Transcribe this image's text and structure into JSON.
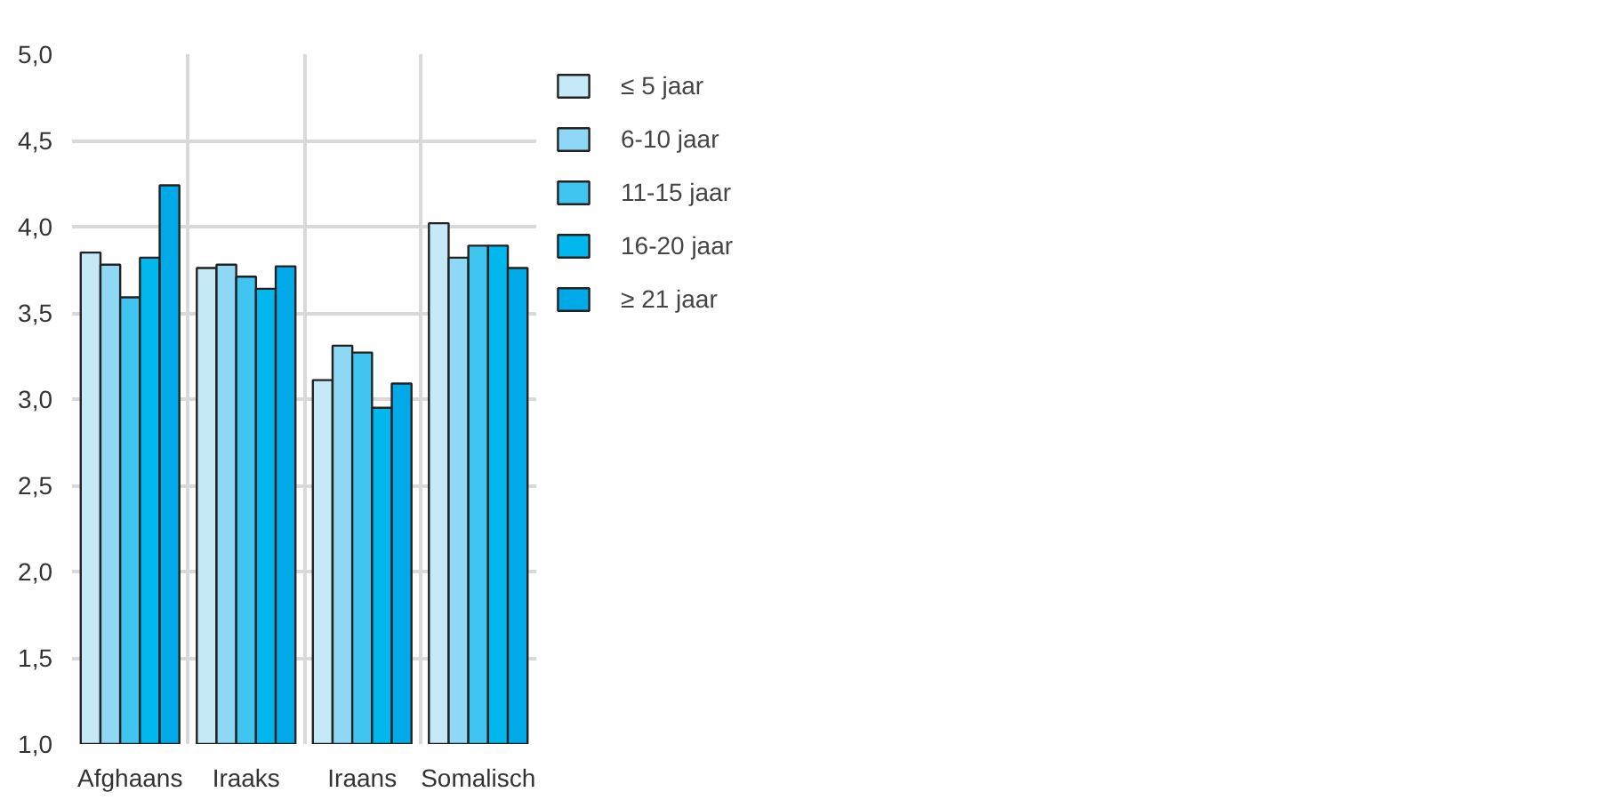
{
  "chart_data": {
    "type": "bar",
    "categories": [
      "Afghaans",
      "Iraaks",
      "Iraans",
      "Somalisch"
    ],
    "series": [
      {
        "name": "≤ 5 jaar",
        "color": "#c6e9f8",
        "values": [
          3.85,
          3.76,
          3.11,
          4.02
        ]
      },
      {
        "name": "6-10 jaar",
        "color": "#8fd8f5",
        "values": [
          3.78,
          3.78,
          3.31,
          3.82
        ]
      },
      {
        "name": "11-15 jaar",
        "color": "#40c4f0",
        "values": [
          3.59,
          3.71,
          3.27,
          3.89
        ]
      },
      {
        "name": "16-20 jaar",
        "color": "#00b8ee",
        "values": [
          3.82,
          3.64,
          2.95,
          3.89
        ]
      },
      {
        "name": "≥ 21 jaar",
        "color": "#00aae8",
        "values": [
          4.24,
          3.77,
          3.09,
          3.76
        ]
      }
    ],
    "ylim": [
      1.0,
      5.0
    ],
    "yticks": [
      {
        "value": 1.0,
        "label": "1,0"
      },
      {
        "value": 1.5,
        "label": "1,5"
      },
      {
        "value": 2.0,
        "label": "2,0"
      },
      {
        "value": 2.5,
        "label": "2,5"
      },
      {
        "value": 3.0,
        "label": "3,0"
      },
      {
        "value": 3.5,
        "label": "3,5"
      },
      {
        "value": 4.0,
        "label": "4,0"
      },
      {
        "value": 4.5,
        "label": "4,5"
      },
      {
        "value": 5.0,
        "label": "5,0"
      }
    ],
    "grid": true,
    "legend": "right"
  }
}
